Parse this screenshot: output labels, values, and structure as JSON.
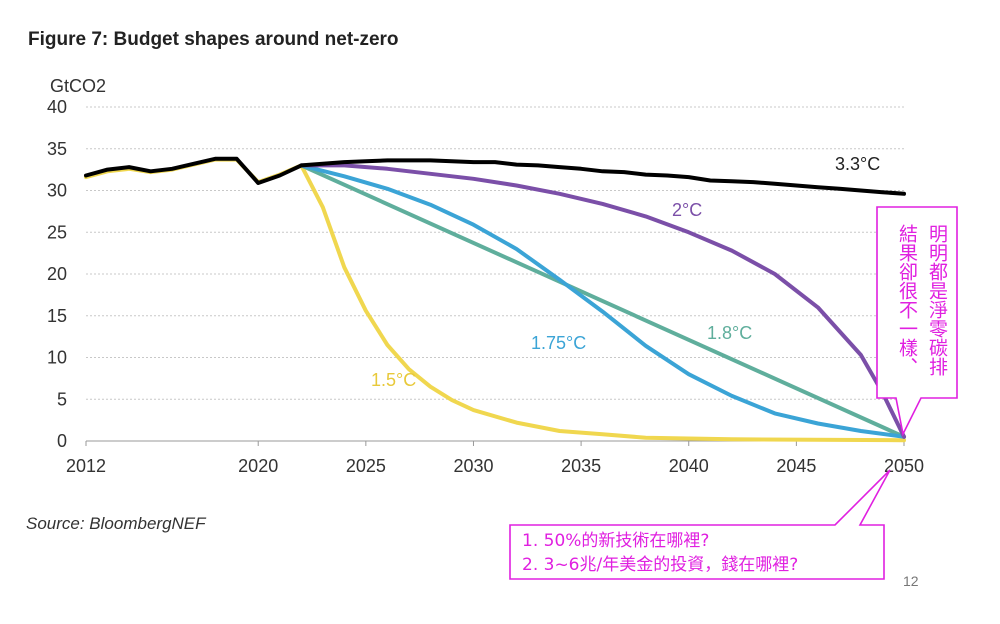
{
  "figure_title": "Figure 7: Budget shapes around net-zero",
  "source": "Source: BloombergNEF",
  "page_number": "12",
  "chart_data": {
    "type": "line",
    "title": "Figure 7: Budget shapes around net-zero",
    "ylabel": "GtCO2",
    "xlabel": "",
    "xlim": [
      2012,
      2050
    ],
    "ylim": [
      0,
      40
    ],
    "x_ticks": [
      "2012",
      "2020",
      "2025",
      "2030",
      "2035",
      "2040",
      "2045",
      "2050"
    ],
    "y_ticks": [
      "40",
      "35",
      "30",
      "25",
      "20",
      "15",
      "10",
      "5",
      "0"
    ],
    "grid": "horizontal",
    "series": [
      {
        "name": "3.3°C",
        "color": "#000000",
        "points": [
          [
            2012,
            31.8
          ],
          [
            2013,
            32.5
          ],
          [
            2014,
            32.8
          ],
          [
            2015,
            32.3
          ],
          [
            2016,
            32.6
          ],
          [
            2017,
            33.2
          ],
          [
            2018,
            33.8
          ],
          [
            2019,
            33.8
          ],
          [
            2020,
            30.9
          ],
          [
            2021,
            31.8
          ],
          [
            2022,
            33
          ],
          [
            2023,
            33.2
          ],
          [
            2024,
            33.4
          ],
          [
            2025,
            33.5
          ],
          [
            2026,
            33.6
          ],
          [
            2027,
            33.6
          ],
          [
            2028,
            33.6
          ],
          [
            2029,
            33.5
          ],
          [
            2030,
            33.4
          ],
          [
            2031,
            33.4
          ],
          [
            2032,
            33.1
          ],
          [
            2033,
            33
          ],
          [
            2034,
            32.8
          ],
          [
            2035,
            32.6
          ],
          [
            2036,
            32.3
          ],
          [
            2037,
            32.2
          ],
          [
            2038,
            31.9
          ],
          [
            2039,
            31.8
          ],
          [
            2040,
            31.6
          ],
          [
            2041,
            31.2
          ],
          [
            2042,
            31.1
          ],
          [
            2043,
            31
          ],
          [
            2044,
            30.8
          ],
          [
            2045,
            30.6
          ],
          [
            2046,
            30.4
          ],
          [
            2047,
            30.2
          ],
          [
            2048,
            30
          ],
          [
            2049,
            29.8
          ],
          [
            2050,
            29.6
          ]
        ]
      },
      {
        "name": "2°C",
        "color": "#7b4fa8",
        "points": [
          [
            2022,
            33
          ],
          [
            2024,
            33
          ],
          [
            2026,
            32.6
          ],
          [
            2028,
            32
          ],
          [
            2030,
            31.4
          ],
          [
            2032,
            30.6
          ],
          [
            2034,
            29.6
          ],
          [
            2036,
            28.4
          ],
          [
            2038,
            26.9
          ],
          [
            2040,
            25
          ],
          [
            2042,
            22.8
          ],
          [
            2044,
            20
          ],
          [
            2046,
            16
          ],
          [
            2048,
            10.3
          ],
          [
            2049,
            5.8
          ],
          [
            2050,
            0.5
          ]
        ]
      },
      {
        "name": "1.8°C",
        "color": "#5fae9c",
        "points": [
          [
            2022,
            33
          ],
          [
            2050,
            0.5
          ]
        ]
      },
      {
        "name": "1.75°C",
        "color": "#3ba4d6",
        "points": [
          [
            2022,
            33
          ],
          [
            2024,
            31.7
          ],
          [
            2026,
            30.2
          ],
          [
            2028,
            28.3
          ],
          [
            2030,
            25.9
          ],
          [
            2032,
            23
          ],
          [
            2034,
            19.3
          ],
          [
            2036,
            15.5
          ],
          [
            2038,
            11.4
          ],
          [
            2040,
            8
          ],
          [
            2042,
            5.4
          ],
          [
            2044,
            3.3
          ],
          [
            2046,
            2.1
          ],
          [
            2048,
            1.2
          ],
          [
            2050,
            0.5
          ]
        ]
      },
      {
        "name": "1.5°C",
        "color": "#f0d74f",
        "points": [
          [
            2012,
            31.6
          ],
          [
            2013,
            32.3
          ],
          [
            2014,
            32.6
          ],
          [
            2015,
            32.2
          ],
          [
            2016,
            32.5
          ],
          [
            2017,
            33.1
          ],
          [
            2018,
            33.7
          ],
          [
            2019,
            33.7
          ],
          [
            2020,
            31
          ],
          [
            2021,
            31.9
          ],
          [
            2022,
            33
          ],
          [
            2023,
            28
          ],
          [
            2024,
            20.8
          ],
          [
            2025,
            15.6
          ],
          [
            2026,
            11.5
          ],
          [
            2027,
            8.6
          ],
          [
            2028,
            6.5
          ],
          [
            2029,
            4.9
          ],
          [
            2030,
            3.7
          ],
          [
            2032,
            2.2
          ],
          [
            2034,
            1.2
          ],
          [
            2036,
            0.8
          ],
          [
            2038,
            0.4
          ],
          [
            2042,
            0.2
          ],
          [
            2050,
            0.1
          ]
        ]
      }
    ],
    "annotations": {
      "side_note_col1": "明明都是淨零碳排",
      "side_note_col2": "結果卻很不一樣、",
      "question_1": "1. 50%的新技術在哪裡?",
      "question_2": "2. 3~6兆/年美金的投資，錢在哪裡?"
    }
  }
}
